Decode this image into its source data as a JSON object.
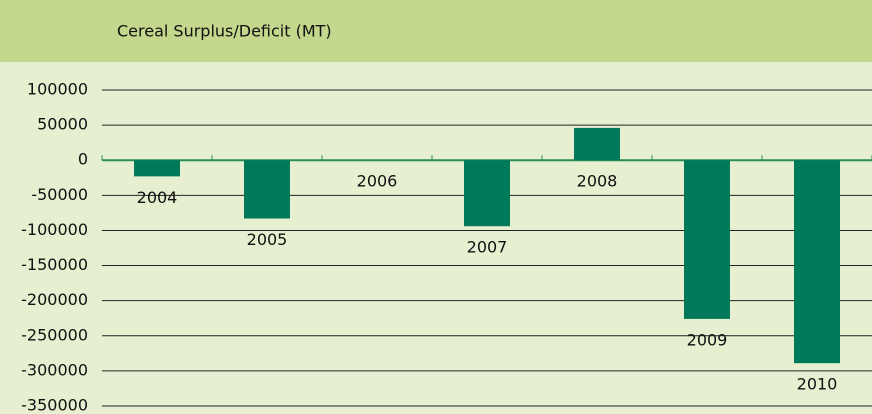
{
  "chart_data": {
    "type": "bar",
    "title": "Cereal Surplus/Deficit (MT)",
    "categories": [
      "2004",
      "2005",
      "2006",
      "2007",
      "2008",
      "2009",
      "2010"
    ],
    "values": [
      -23000,
      -83000,
      0,
      -94000,
      46000,
      -226000,
      -289000
    ],
    "color": "#00795a",
    "ylim": [
      -350000,
      100000
    ],
    "yticks": [
      100000,
      50000,
      0,
      -50000,
      -100000,
      -150000,
      -200000,
      -250000,
      -300000,
      -350000
    ],
    "grid": true
  }
}
